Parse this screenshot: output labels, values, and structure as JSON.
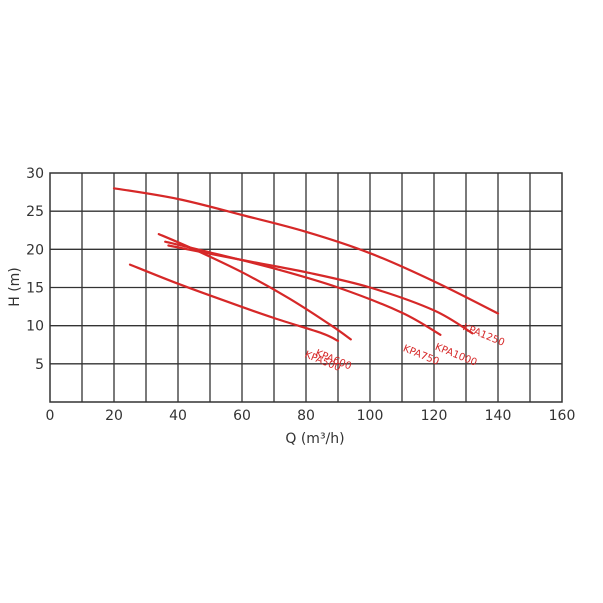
{
  "chart_data": {
    "type": "line",
    "xlabel": "Q (m³/h)",
    "ylabel": "H (m)",
    "xlim": [
      0,
      160
    ],
    "ylim": [
      0,
      30
    ],
    "x_ticks": [
      "0",
      "20",
      "40",
      "60",
      "80",
      "100",
      "120",
      "140",
      "160"
    ],
    "y_ticks": [
      "5",
      "10",
      "15",
      "20",
      "25",
      "30"
    ],
    "x_grid_step": 10,
    "y_grid_step": 5,
    "grid": true,
    "line_color": "#d62828",
    "series": [
      {
        "name": "KPA500",
        "x": [
          25,
          40,
          55,
          70,
          85,
          90
        ],
        "y": [
          18,
          15.5,
          13.2,
          11,
          9,
          8
        ]
      },
      {
        "name": "KPA600",
        "x": [
          34,
          45,
          60,
          75,
          88,
          94
        ],
        "y": [
          22,
          20,
          17,
          13.5,
          10,
          8.2
        ]
      },
      {
        "name": "KPA750",
        "x": [
          36,
          50,
          70,
          90,
          110,
          122
        ],
        "y": [
          21,
          19.6,
          17.5,
          15,
          11.7,
          8.8
        ]
      },
      {
        "name": "KPA1000",
        "x": [
          37,
          60,
          80,
          100,
          120,
          132
        ],
        "y": [
          20.5,
          18.6,
          17,
          15,
          12,
          9
        ]
      },
      {
        "name": "KPA1250",
        "x": [
          20,
          40,
          60,
          80,
          100,
          120,
          140
        ],
        "y": [
          28,
          26.6,
          24.5,
          22.3,
          19.5,
          15.8,
          11.6
        ]
      }
    ]
  }
}
